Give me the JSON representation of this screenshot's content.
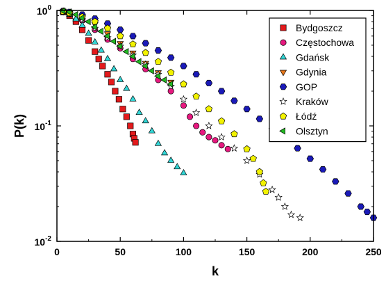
{
  "chart_data": {
    "type": "scatter",
    "xlabel": "k",
    "ylabel": "P(k)",
    "xlim": [
      0,
      250
    ],
    "ylim": [
      0.01,
      1
    ],
    "yscale": "log",
    "x_ticks": [
      0,
      50,
      100,
      150,
      200,
      250
    ],
    "y_ticks": [
      {
        "value": 1,
        "base": "10",
        "exp": "0"
      },
      {
        "value": 0.1,
        "base": "10",
        "exp": "-1"
      },
      {
        "value": 0.01,
        "base": "10",
        "exp": "-2"
      }
    ],
    "grid": false,
    "legend_position": "top-right",
    "series": [
      {
        "name": "Bydgoszcz",
        "marker": "square",
        "color": "#e31a1c",
        "x": [
          5,
          10,
          15,
          20,
          25,
          30,
          33,
          36,
          40,
          43,
          46,
          49,
          52,
          55,
          58,
          60,
          61,
          62
        ],
        "y": [
          0.97,
          0.9,
          0.8,
          0.68,
          0.55,
          0.44,
          0.38,
          0.33,
          0.28,
          0.24,
          0.2,
          0.17,
          0.14,
          0.12,
          0.1,
          0.085,
          0.078,
          0.072
        ]
      },
      {
        "name": "Częstochowa",
        "marker": "circle",
        "color": "#e6197f",
        "x": [
          5,
          10,
          20,
          30,
          40,
          50,
          60,
          70,
          80,
          90,
          100,
          105,
          110,
          115,
          120,
          125,
          130,
          135
        ],
        "y": [
          0.97,
          0.93,
          0.82,
          0.68,
          0.56,
          0.47,
          0.38,
          0.31,
          0.25,
          0.2,
          0.15,
          0.12,
          0.1,
          0.088,
          0.08,
          0.075,
          0.068,
          0.063
        ]
      },
      {
        "name": "Gdańsk",
        "marker": "triangle-up",
        "color": "#33d6d6",
        "x": [
          5,
          10,
          15,
          20,
          25,
          30,
          35,
          40,
          45,
          50,
          55,
          60,
          65,
          70,
          75,
          80,
          85,
          90,
          95,
          100
        ],
        "y": [
          0.98,
          0.92,
          0.84,
          0.74,
          0.63,
          0.53,
          0.45,
          0.38,
          0.31,
          0.25,
          0.21,
          0.17,
          0.13,
          0.11,
          0.09,
          0.07,
          0.058,
          0.05,
          0.044,
          0.039
        ]
      },
      {
        "name": "Gdynia",
        "marker": "triangle-down",
        "color": "#e6761a",
        "x": [
          5,
          10,
          20,
          30,
          40,
          50,
          60,
          70,
          80,
          90
        ],
        "y": [
          0.98,
          0.95,
          0.86,
          0.76,
          0.63,
          0.52,
          0.43,
          0.35,
          0.29,
          0.24
        ]
      },
      {
        "name": "GOP",
        "marker": "hexagon",
        "color": "#1a1ab8",
        "x": [
          5,
          10,
          20,
          30,
          40,
          50,
          60,
          70,
          80,
          90,
          100,
          110,
          120,
          130,
          140,
          150,
          160,
          170,
          180,
          190,
          200,
          210,
          220,
          230,
          240,
          245,
          250
        ],
        "y": [
          0.99,
          0.97,
          0.92,
          0.85,
          0.77,
          0.68,
          0.6,
          0.52,
          0.45,
          0.39,
          0.33,
          0.28,
          0.235,
          0.2,
          0.165,
          0.14,
          0.115,
          0.095,
          0.078,
          0.064,
          0.052,
          0.042,
          0.033,
          0.026,
          0.02,
          0.018,
          0.016
        ]
      },
      {
        "name": "Kraków",
        "marker": "star",
        "color": "#ffffff",
        "x": [
          5,
          10,
          20,
          30,
          40,
          50,
          60,
          70,
          80,
          90,
          100,
          110,
          120,
          130,
          140,
          150,
          160,
          170,
          175,
          180,
          185,
          192
        ],
        "y": [
          0.97,
          0.93,
          0.83,
          0.7,
          0.58,
          0.49,
          0.41,
          0.34,
          0.28,
          0.22,
          0.17,
          0.13,
          0.1,
          0.08,
          0.064,
          0.05,
          0.038,
          0.028,
          0.024,
          0.02,
          0.017,
          0.016
        ]
      },
      {
        "name": "Łódź",
        "marker": "pentagon",
        "color": "#f2f200",
        "x": [
          5,
          10,
          20,
          30,
          40,
          50,
          60,
          70,
          80,
          90,
          100,
          110,
          120,
          130,
          140,
          150,
          155,
          160,
          163,
          165
        ],
        "y": [
          0.98,
          0.95,
          0.88,
          0.8,
          0.7,
          0.6,
          0.51,
          0.43,
          0.36,
          0.29,
          0.23,
          0.18,
          0.14,
          0.11,
          0.085,
          0.063,
          0.052,
          0.04,
          0.032,
          0.027
        ]
      },
      {
        "name": "Olsztyn",
        "marker": "triangle-left",
        "color": "#22b822",
        "x": [
          5,
          10,
          15,
          20,
          25,
          30,
          35,
          40,
          45,
          50,
          55,
          60,
          65,
          70,
          75,
          80,
          85,
          90
        ],
        "y": [
          0.99,
          0.97,
          0.92,
          0.86,
          0.8,
          0.72,
          0.66,
          0.6,
          0.54,
          0.49,
          0.44,
          0.4,
          0.36,
          0.33,
          0.3,
          0.27,
          0.25,
          0.23
        ]
      }
    ]
  }
}
